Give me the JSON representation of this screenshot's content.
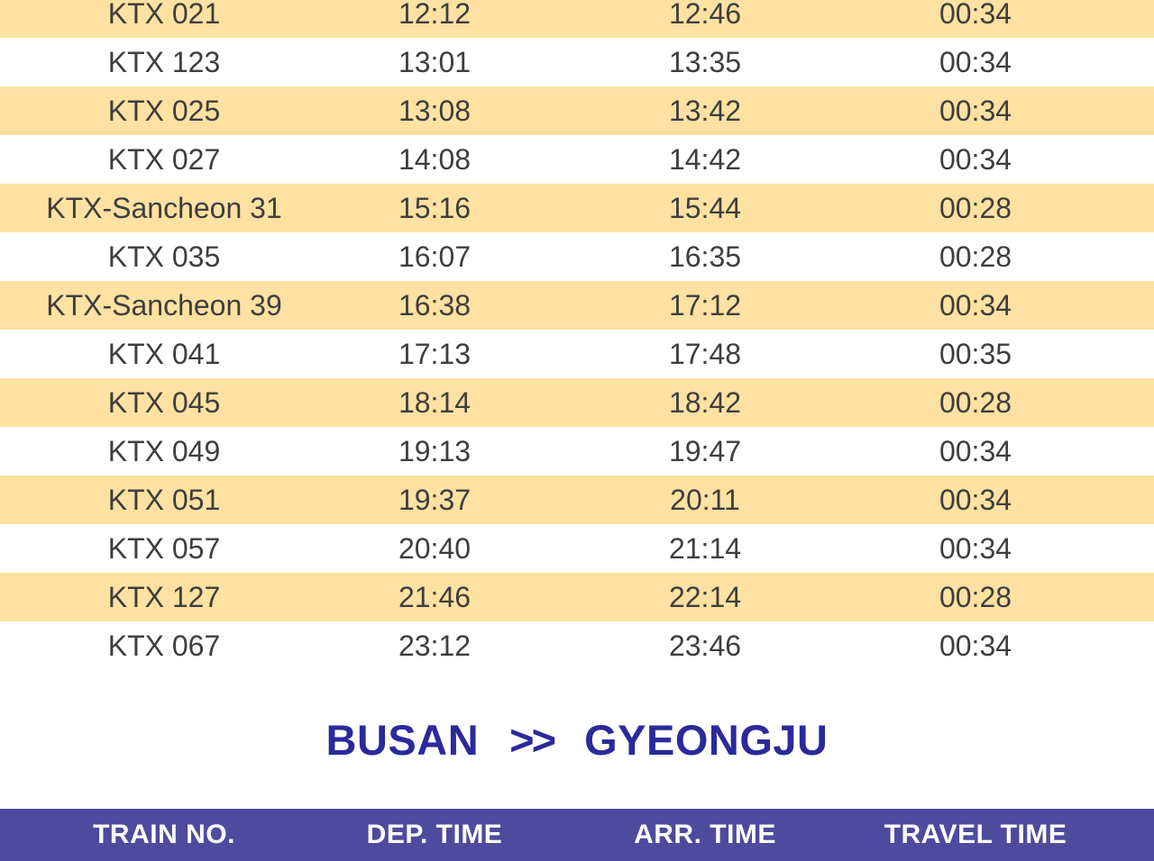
{
  "title": {
    "origin": "BUSAN",
    "arrow": ">>",
    "destination": "GYEONGJU"
  },
  "header": {
    "columns": [
      "TRAIN NO.",
      "DEP. TIME",
      "ARR. TIME",
      "TRAVEL TIME"
    ]
  },
  "rows": [
    {
      "train": "KTX 021",
      "dep": "12:12",
      "arr": "12:46",
      "travel": "00:34"
    },
    {
      "train": "KTX 123",
      "dep": "13:01",
      "arr": "13:35",
      "travel": "00:34"
    },
    {
      "train": "KTX 025",
      "dep": "13:08",
      "arr": "13:42",
      "travel": "00:34"
    },
    {
      "train": "KTX 027",
      "dep": "14:08",
      "arr": "14:42",
      "travel": "00:34"
    },
    {
      "train": "KTX-Sancheon 31",
      "dep": "15:16",
      "arr": "15:44",
      "travel": "00:28"
    },
    {
      "train": "KTX 035",
      "dep": "16:07",
      "arr": "16:35",
      "travel": "00:28"
    },
    {
      "train": "KTX-Sancheon 39",
      "dep": "16:38",
      "arr": "17:12",
      "travel": "00:34"
    },
    {
      "train": "KTX 041",
      "dep": "17:13",
      "arr": "17:48",
      "travel": "00:35"
    },
    {
      "train": "KTX 045",
      "dep": "18:14",
      "arr": "18:42",
      "travel": "00:28"
    },
    {
      "train": "KTX 049",
      "dep": "19:13",
      "arr": "19:47",
      "travel": "00:34"
    },
    {
      "train": "KTX 051",
      "dep": "19:37",
      "arr": "20:11",
      "travel": "00:34"
    },
    {
      "train": "KTX 057",
      "dep": "20:40",
      "arr": "21:14",
      "travel": "00:34"
    },
    {
      "train": "KTX 127",
      "dep": "21:46",
      "arr": "22:14",
      "travel": "00:28"
    },
    {
      "train": "KTX 067",
      "dep": "23:12",
      "arr": "23:46",
      "travel": "00:34"
    }
  ],
  "colors": {
    "row_highlight": "#FFE1A1",
    "header_bg": "#4D4B9E",
    "header_text": "#FFFFFF",
    "title_text": "#2B2A9B",
    "row_text": "#3E3E40"
  },
  "chart_data": {
    "type": "table",
    "title": "BUSAN >> GYEONGJU",
    "columns": [
      "TRAIN NO.",
      "DEP. TIME",
      "ARR. TIME",
      "TRAVEL TIME"
    ],
    "rows": [
      [
        "KTX 021",
        "12:12",
        "12:46",
        "00:34"
      ],
      [
        "KTX 123",
        "13:01",
        "13:35",
        "00:34"
      ],
      [
        "KTX 025",
        "13:08",
        "13:42",
        "00:34"
      ],
      [
        "KTX 027",
        "14:08",
        "14:42",
        "00:34"
      ],
      [
        "KTX-Sancheon 31",
        "15:16",
        "15:44",
        "00:28"
      ],
      [
        "KTX 035",
        "16:07",
        "16:35",
        "00:28"
      ],
      [
        "KTX-Sancheon 39",
        "16:38",
        "17:12",
        "00:34"
      ],
      [
        "KTX 041",
        "17:13",
        "17:48",
        "00:35"
      ],
      [
        "KTX 045",
        "18:14",
        "18:42",
        "00:28"
      ],
      [
        "KTX 049",
        "19:13",
        "19:47",
        "00:34"
      ],
      [
        "KTX 051",
        "19:37",
        "20:11",
        "00:34"
      ],
      [
        "KTX 057",
        "20:40",
        "21:14",
        "00:34"
      ],
      [
        "KTX 127",
        "21:46",
        "22:14",
        "00:28"
      ],
      [
        "KTX 067",
        "23:12",
        "23:46",
        "00:34"
      ]
    ],
    "layout_hints": {
      "row_striping": "alternating yellow/white starting yellow",
      "header_position": "bottom",
      "column_alignment": "center"
    }
  }
}
